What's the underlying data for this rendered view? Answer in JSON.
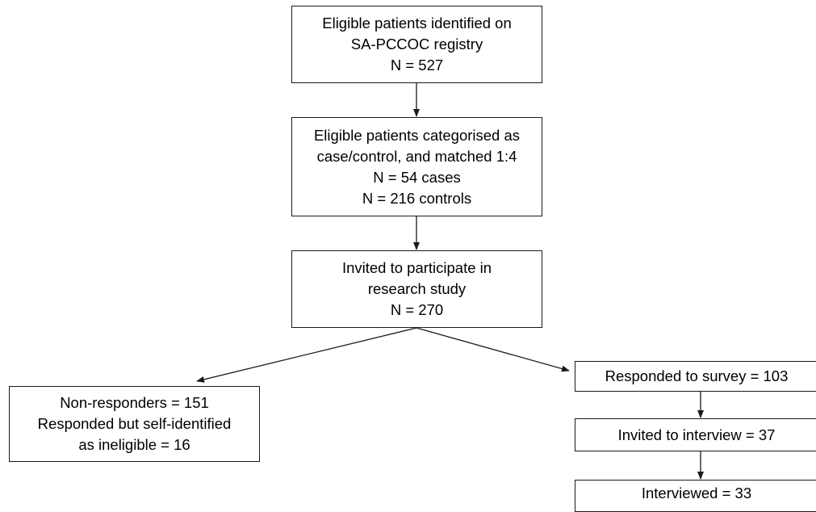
{
  "flowchart": {
    "boxes": {
      "registry": {
        "lines": [
          "Eligible patients identified on",
          "SA-PCCOC registry",
          "N = 527"
        ]
      },
      "matched": {
        "lines": [
          "Eligible patients categorised as",
          "case/control, and matched 1:4",
          "N = 54 cases",
          "N = 216 controls"
        ]
      },
      "invited": {
        "lines": [
          "Invited to participate in",
          "research study",
          "N = 270"
        ]
      },
      "non_responders": {
        "lines": [
          "Non-responders = 151",
          "Responded but self-identified",
          "as ineligible = 16"
        ]
      },
      "responded": {
        "lines": [
          "Responded to survey = 103"
        ]
      },
      "invited_interview": {
        "lines": [
          "Invited to interview = 37"
        ]
      },
      "interviewed": {
        "lines": [
          "Interviewed = 33"
        ]
      }
    }
  }
}
